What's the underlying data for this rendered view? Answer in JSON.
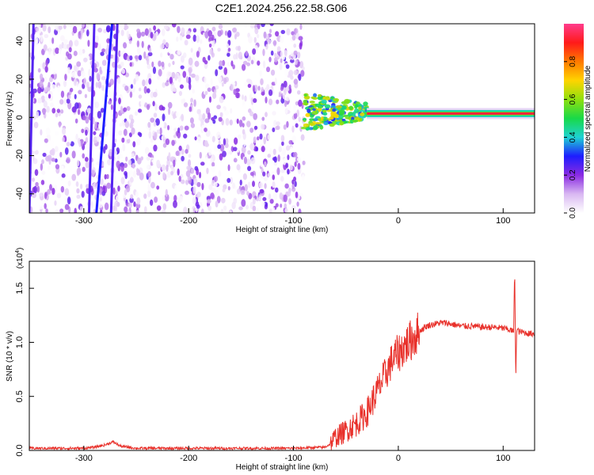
{
  "figure_title": "C2E1.2024.256.22.58.G06",
  "chart_data": [
    {
      "type": "heatmap",
      "xlabel": "Height of straight line (km)",
      "ylabel": "Frequency (Hz)",
      "xlim": [
        -352,
        130
      ],
      "ylim": [
        -50,
        49
      ],
      "x_ticks": [
        -300,
        -200,
        -100,
        0,
        100
      ],
      "y_ticks": [
        -40,
        -20,
        0,
        20,
        40
      ],
      "colorbar": {
        "label": "Normalized spectral amplitude",
        "range": [
          0,
          1
        ],
        "ticks": [
          "0.0",
          "0.2",
          "0.4",
          "0.6",
          "0.8"
        ],
        "colors": [
          "#ffffff",
          "#d9b8f2",
          "#8a2be2",
          "#1d1dff",
          "#1fd2d2",
          "#18d948",
          "#8fe00f",
          "#ffd400",
          "#ff7a00",
          "#ff1a1a",
          "#ff3c8c"
        ]
      },
      "regions": [
        {
          "x_range": [
            -352,
            -90
          ],
          "description_values": {
            "freq_range": [
              -50,
              49
            ],
            "amplitude": [
              0.0,
              0.25
            ]
          }
        },
        {
          "x_range": [
            -90,
            -30
          ],
          "description_values": {
            "center_freq": 3,
            "amplitude": [
              0.3,
              0.7
            ]
          }
        },
        {
          "x_range": [
            -30,
            130
          ],
          "description_values": {
            "center_freq": 2,
            "amplitude": [
              0.5,
              0.95
            ]
          }
        }
      ],
      "streaks": [
        {
          "x_at_top": -290,
          "x_at_bottom": -295,
          "amplitude": 0.25
        },
        {
          "x_at_top": -273,
          "x_at_bottom": -288,
          "amplitude": 0.3
        },
        {
          "x_at_top": -268,
          "x_at_bottom": -274,
          "amplitude": 0.25
        },
        {
          "x_at_top": -348,
          "x_at_bottom": -352,
          "amplitude": 0.25
        }
      ]
    },
    {
      "type": "line",
      "xlabel": "Height of straight line (km)",
      "ylabel": "SNR (10 * v/v)",
      "y_multiplier": "(x10",
      "y_multiplier_exp": "4",
      "xlim": [
        -352,
        130
      ],
      "ylim": [
        0,
        1.75
      ],
      "x_ticks": [
        -300,
        -200,
        -100,
        0,
        100
      ],
      "y_ticks": [
        "0.0",
        "0.5",
        "1.0",
        "1.5"
      ],
      "series": [
        {
          "color": "#e8302a",
          "x": [
            -352,
            -300,
            -290,
            -280,
            -272,
            -265,
            -250,
            -200,
            -150,
            -100,
            -70,
            -65,
            -60,
            -55,
            -50,
            -45,
            -40,
            -35,
            -30,
            -25,
            -20,
            -15,
            -10,
            -5,
            0,
            5,
            10,
            15,
            20,
            25,
            30,
            35,
            40,
            45,
            50,
            55,
            60,
            70,
            80,
            90,
            100,
            105,
            110,
            111,
            112,
            113,
            115,
            120,
            125,
            130
          ],
          "values": [
            0.02,
            0.02,
            0.03,
            0.05,
            0.08,
            0.04,
            0.02,
            0.02,
            0.02,
            0.02,
            0.03,
            0.06,
            0.12,
            0.15,
            0.18,
            0.22,
            0.25,
            0.3,
            0.35,
            0.45,
            0.55,
            0.65,
            0.75,
            0.85,
            0.9,
            0.95,
            1.0,
            1.05,
            1.1,
            1.14,
            1.16,
            1.17,
            1.18,
            1.18,
            1.17,
            1.16,
            1.15,
            1.15,
            1.14,
            1.14,
            1.13,
            1.12,
            1.1,
            1.7,
            0.65,
            1.12,
            1.1,
            1.09,
            1.08,
            1.08
          ]
        }
      ]
    }
  ]
}
